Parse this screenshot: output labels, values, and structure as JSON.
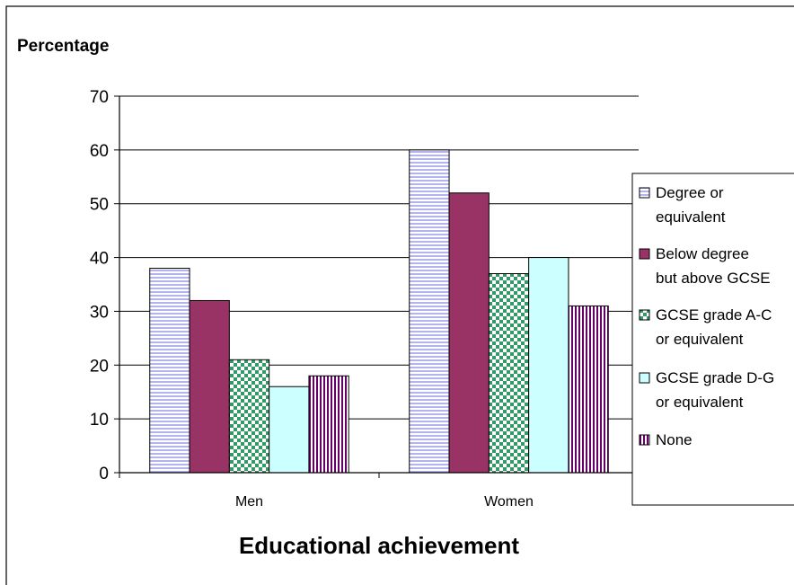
{
  "chart_data": {
    "type": "bar",
    "title": "",
    "ylabel": "Percentage",
    "xlabel": "Educational achievement",
    "categories": [
      "Men",
      "Women"
    ],
    "ylim": [
      0,
      70
    ],
    "yticks": [
      0,
      10,
      20,
      30,
      40,
      50,
      60,
      70
    ],
    "grid": true,
    "legend_position": "right",
    "series": [
      {
        "name": "Degree or equivalent",
        "legend_lines": [
          "Degree or",
          "equivalent"
        ],
        "values": [
          38,
          60
        ],
        "color": "#ccccff",
        "pattern": "horizontal-lines"
      },
      {
        "name": "Below degree but above GCSE",
        "legend_lines": [
          "Below  degree",
          "but above GCSE"
        ],
        "values": [
          32,
          52
        ],
        "color": "#993366",
        "pattern": "solid"
      },
      {
        "name": "GCSE grade A-C or equivalent",
        "legend_lines": [
          "GCSE grade A-C",
          "or equivalent"
        ],
        "values": [
          21,
          37
        ],
        "color": "#339966",
        "pattern": "checker"
      },
      {
        "name": "GCSE grade D-G or equivalent",
        "legend_lines": [
          "GCSE grade D-G",
          "or equivalent"
        ],
        "values": [
          16,
          40
        ],
        "color": "#ccffff",
        "pattern": "solid"
      },
      {
        "name": "None",
        "legend_lines": [
          "None"
        ],
        "values": [
          18,
          31
        ],
        "color": "#660066",
        "pattern": "vertical-lines"
      }
    ]
  }
}
